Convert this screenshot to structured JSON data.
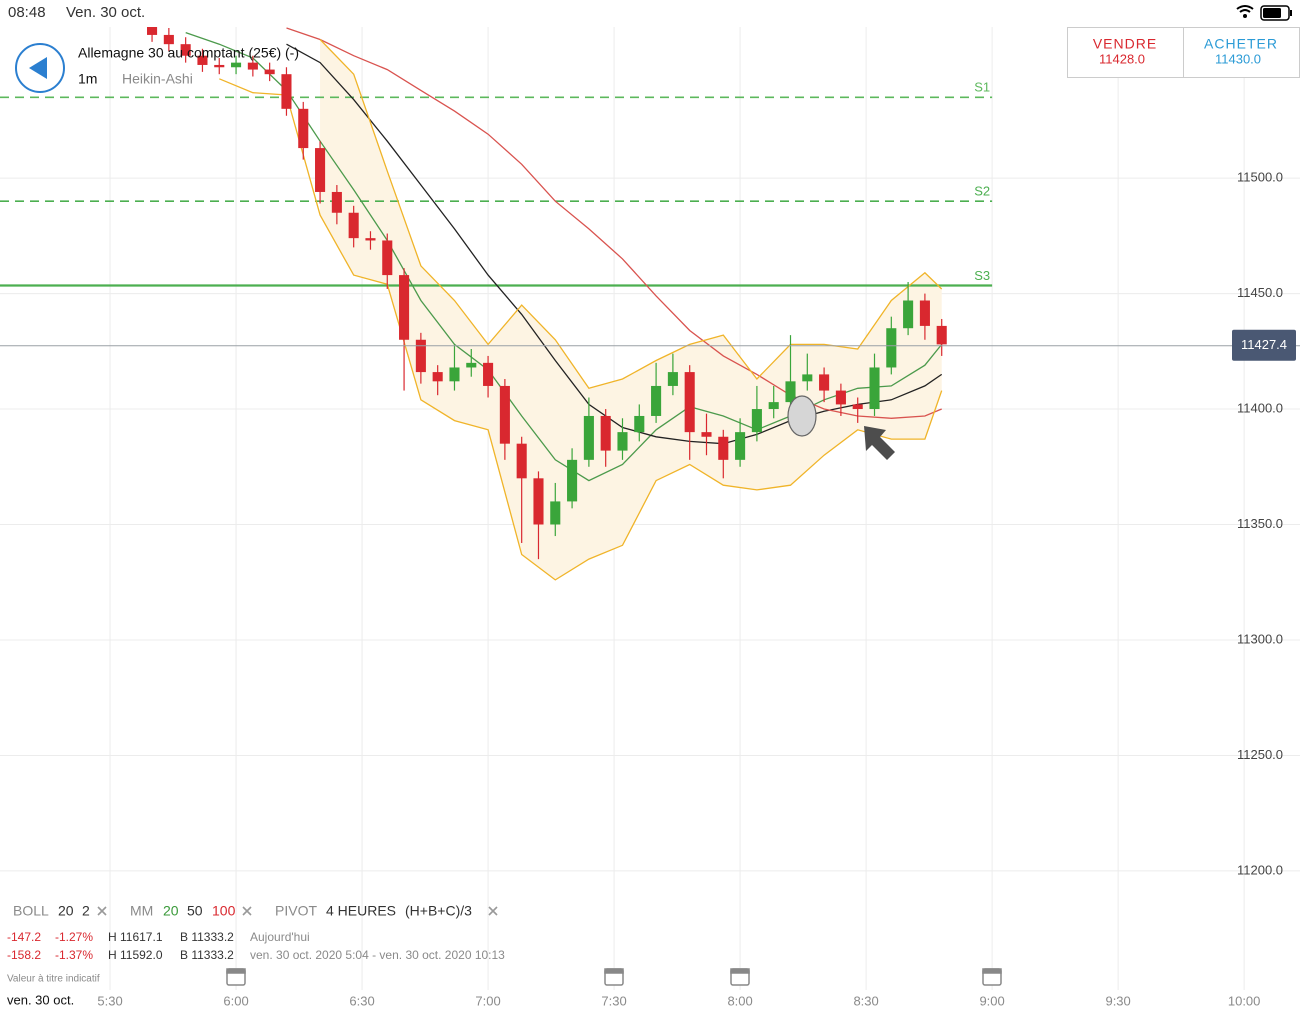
{
  "status_bar": {
    "time": "08:48",
    "date": "Ven. 30 oct."
  },
  "header": {
    "title": "Allemagne 30 au comptant (25€) (-)",
    "timeframe": "1m",
    "chart_style": "Heikin-Ashi"
  },
  "trade_buttons": {
    "sell": {
      "label": "VENDRE",
      "price": "11428.0"
    },
    "buy": {
      "label": "ACHETER",
      "price": "11430.0"
    }
  },
  "indicators": {
    "boll": {
      "name": "BOLL",
      "period": "20",
      "deviation": "2"
    },
    "mm": {
      "name": "MM",
      "short": "20",
      "mid": "50",
      "long": "100"
    },
    "pivot": {
      "name": "PIVOT",
      "period": "4 HEURES",
      "formula": "(H+B+C)/3"
    }
  },
  "stats": [
    {
      "change": "-147.2",
      "change_pct": "-1.27%",
      "high": "H 11617.1",
      "low": "B 11333.2",
      "range": "Aujourd'hui"
    },
    {
      "change": "-158.2",
      "change_pct": "-1.37%",
      "high": "H 11592.0",
      "low": "B 11333.2",
      "range": "ven. 30 oct. 2020 5:04 - ven. 30 oct. 2020 10:13"
    }
  ],
  "disclaimer": "Valeur à titre indicatif",
  "footer_date": "ven. 30 oct.",
  "chart_data": {
    "type": "candlestick",
    "up_color": "#3aa53a",
    "down_color": "#d9282f",
    "x": [
      340,
      344,
      348,
      352,
      356,
      360,
      364,
      368,
      372,
      376,
      380,
      384,
      388,
      392,
      396,
      400,
      404,
      408,
      412,
      416,
      420,
      424,
      428,
      432,
      436,
      440,
      444,
      448,
      452,
      456,
      460,
      464,
      468,
      472,
      476,
      480,
      484,
      488,
      492,
      496,
      500,
      504,
      508,
      512,
      516,
      520,
      524,
      528
    ],
    "open": [
      11566,
      11562,
      11558,
      11553,
      11549,
      11548,
      11550,
      11547,
      11545,
      11530,
      11513,
      11494,
      11485,
      11474,
      11473,
      11458,
      11430,
      11416,
      11412,
      11418,
      11420,
      11410,
      11385,
      11370,
      11350,
      11360,
      11378,
      11397,
      11382,
      11390,
      11397,
      11410,
      11416,
      11390,
      11388,
      11378,
      11390,
      11400,
      11403,
      11412,
      11415,
      11408,
      11402,
      11400,
      11418,
      11435,
      11447,
      11436
    ],
    "high": [
      11569,
      11565,
      11561,
      11556,
      11552,
      11553,
      11553,
      11550,
      11548,
      11533,
      11516,
      11497,
      11488,
      11477,
      11476,
      11461,
      11433,
      11419,
      11428,
      11426,
      11423,
      11413,
      11388,
      11373,
      11368,
      11383,
      11405,
      11400,
      11396,
      11402,
      11420,
      11424,
      11419,
      11398,
      11391,
      11396,
      11410,
      11410,
      11432,
      11424,
      11418,
      11411,
      11405,
      11424,
      11440,
      11455,
      11450,
      11439
    ],
    "low": [
      11559,
      11555,
      11550,
      11546,
      11545,
      11545,
      11544,
      11542,
      11527,
      11508,
      11489,
      11480,
      11470,
      11469,
      11452,
      11408,
      11411,
      11406,
      11408,
      11414,
      11405,
      11378,
      11342,
      11335,
      11345,
      11357,
      11375,
      11375,
      11378,
      11386,
      11394,
      11406,
      11378,
      11380,
      11370,
      11375,
      11386,
      11396,
      11399,
      11408,
      11403,
      11397,
      11394,
      11397,
      11415,
      11432,
      11430,
      11423
    ],
    "close": [
      11562,
      11558,
      11553,
      11549,
      11548,
      11550,
      11547,
      11545,
      11530,
      11513,
      11494,
      11485,
      11474,
      11473,
      11458,
      11430,
      11416,
      11412,
      11418,
      11420,
      11410,
      11385,
      11370,
      11350,
      11360,
      11378,
      11397,
      11382,
      11390,
      11397,
      11410,
      11416,
      11390,
      11388,
      11378,
      11390,
      11400,
      11403,
      11412,
      11415,
      11408,
      11402,
      11400,
      11418,
      11435,
      11447,
      11436,
      11428
    ],
    "lines_x": [
      340,
      348,
      356,
      364,
      372,
      380,
      388,
      396,
      404,
      412,
      420,
      428,
      436,
      444,
      452,
      460,
      468,
      476,
      484,
      492,
      500,
      508,
      516,
      524,
      528
    ],
    "band_fill": "#fdf4e3",
    "lines": [
      {
        "color": "#4c9a4c",
        "values": [
          null,
          11563,
          11558,
          11552,
          11538,
          11516,
          11495,
          11473,
          11447,
          11428,
          11417,
          11397,
          11378,
          11369,
          11376,
          11391,
          11401,
          11397,
          11391,
          11397,
          11404,
          11409,
          11410,
          11419,
          11428
        ]
      },
      {
        "color": "#222222",
        "values": [
          null,
          null,
          null,
          null,
          11558,
          11550,
          11534,
          11516,
          11497,
          11478,
          11458,
          11441,
          11421,
          11402,
          11392,
          11388,
          11386,
          11385,
          11389,
          11395,
          11399,
          11402,
          11404,
          11410,
          11415
        ]
      },
      {
        "color": "#d9534f",
        "values": [
          null,
          null,
          null,
          null,
          11565,
          11560,
          11553,
          11547,
          11538,
          11529,
          11519,
          11506,
          11490,
          11478,
          11465,
          11449,
          11434,
          11423,
          11415,
          11406,
          11400,
          11397,
          11396,
          11397,
          11400
        ]
      },
      {
        "color": "#f0b429",
        "values": [
          null,
          null,
          null,
          null,
          null,
          11560,
          11545,
          11503,
          11462,
          11447,
          11428,
          11445,
          11430,
          11409,
          11413,
          11421,
          11428,
          11432,
          11413,
          11428,
          11428,
          11426,
          11447,
          11459,
          11452
        ]
      },
      {
        "color": "#f0b429",
        "values": [
          null,
          null,
          11543,
          11537,
          11536,
          11484,
          11458,
          11454,
          11404,
          11395,
          11391,
          11337,
          11326,
          11335,
          11341,
          11369,
          11376,
          11367,
          11365,
          11367,
          11380,
          11391,
          11387,
          11387,
          11408
        ]
      }
    ],
    "levels": [
      {
        "label": "S1",
        "value": 11535,
        "color": "#5cb85c",
        "dashed": true
      },
      {
        "label": "S2",
        "value": 11490,
        "color": "#4caf50",
        "dashed": true
      },
      {
        "label": "S3",
        "value": 11453.5,
        "color": "#4caf50",
        "dashed": false
      }
    ],
    "last_price": 11427.4,
    "grid": true,
    "xlim": [
      303.8,
      613.3
    ],
    "ylim": [
      11190,
      11565
    ],
    "xticks": [
      {
        "value": 330,
        "label": "5:30"
      },
      {
        "value": 360,
        "label": "6:00"
      },
      {
        "value": 390,
        "label": "6:30"
      },
      {
        "value": 420,
        "label": "7:00"
      },
      {
        "value": 450,
        "label": "7:30"
      },
      {
        "value": 480,
        "label": "8:00"
      },
      {
        "value": 510,
        "label": "8:30"
      },
      {
        "value": 540,
        "label": "9:00"
      },
      {
        "value": 570,
        "label": "9:30"
      },
      {
        "value": 600,
        "label": "10:00"
      }
    ],
    "yticks": [
      {
        "value": 11500,
        "label": "11500.0"
      },
      {
        "value": 11450,
        "label": "11450.0"
      },
      {
        "value": 11400,
        "label": "11400.0"
      },
      {
        "value": 11350,
        "label": "11350.0"
      },
      {
        "value": 11300,
        "label": "11300.0"
      },
      {
        "value": 11250,
        "label": "11250.0"
      },
      {
        "value": 11200,
        "label": "11200.0"
      }
    ]
  }
}
